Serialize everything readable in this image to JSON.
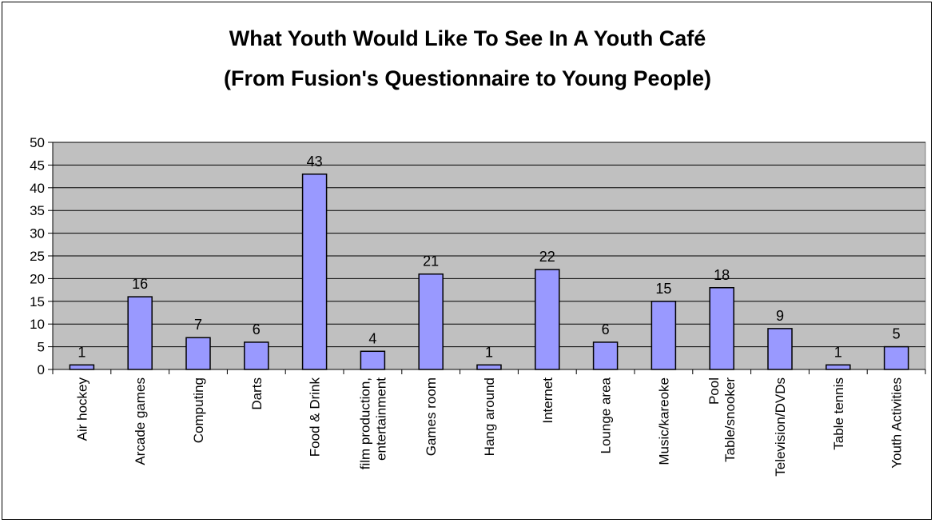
{
  "chart_data": {
    "type": "bar",
    "title": "What Youth Would Like To See In A Youth Café",
    "subtitle": "(From Fusion's Questionnaire to Young People)",
    "categories": [
      [
        "Air hockey"
      ],
      [
        "Arcade games"
      ],
      [
        "Computing"
      ],
      [
        "Darts"
      ],
      [
        "Food & Drink"
      ],
      [
        "film production,",
        "entertainment"
      ],
      [
        "Games room"
      ],
      [
        "Hang around"
      ],
      [
        "Internet"
      ],
      [
        "Lounge area"
      ],
      [
        "Music/kareoke"
      ],
      [
        "Pool",
        "Table/snooker"
      ],
      [
        "Television/DVDs"
      ],
      [
        "Table tennis"
      ],
      [
        "Youth Activities"
      ]
    ],
    "values": [
      1,
      16,
      7,
      6,
      43,
      4,
      21,
      1,
      22,
      6,
      15,
      18,
      9,
      1,
      5
    ],
    "ylim": [
      0,
      50
    ],
    "yticks": [
      0,
      5,
      10,
      15,
      20,
      25,
      30,
      35,
      40,
      45,
      50
    ],
    "grid": true,
    "legend": "none",
    "colors": {
      "bar_fill": "#9999ff",
      "bar_stroke": "#000000",
      "plot_background": "#c0c0c0",
      "gridline": "#000000"
    }
  }
}
